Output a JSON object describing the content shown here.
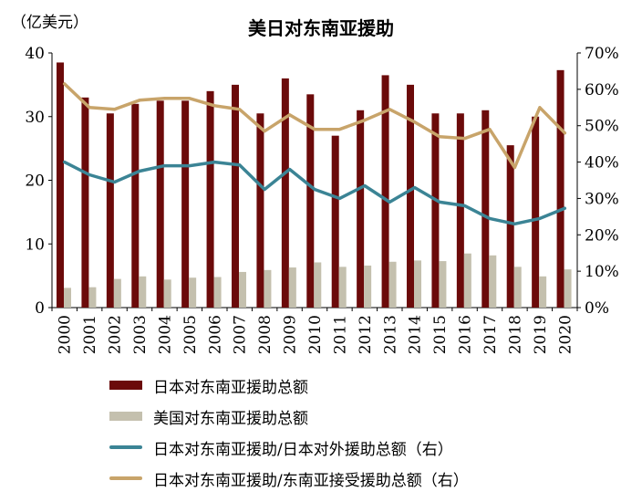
{
  "chart_data": {
    "type": "bar",
    "title": "美日对东南亚援助",
    "y_left_unit": "（亿美元）",
    "y_left_ticks": [
      "0",
      "10",
      "20",
      "30",
      "40"
    ],
    "y_left_range": [
      0,
      40
    ],
    "y_right_ticks": [
      "0%",
      "10%",
      "20%",
      "30%",
      "40%",
      "50%",
      "60%",
      "70%"
    ],
    "y_right_range": [
      0,
      70
    ],
    "categories": [
      "2000",
      "2001",
      "2002",
      "2003",
      "2004",
      "2005",
      "2006",
      "2007",
      "2008",
      "2009",
      "2010",
      "2011",
      "2012",
      "2013",
      "2014",
      "2015",
      "2016",
      "2017",
      "2018",
      "2019",
      "2020"
    ],
    "series": [
      {
        "name": "日本对东南亚援助总额",
        "type": "bar",
        "axis": "left",
        "color": "#6b0a0a",
        "values": [
          38.5,
          33,
          30.5,
          32,
          32.5,
          32.5,
          34,
          35,
          30.5,
          36,
          33.5,
          27,
          31,
          36.5,
          35,
          30.5,
          30.5,
          31,
          25.5,
          30,
          37.3
        ]
      },
      {
        "name": "美国对东南亚援助总额",
        "type": "bar",
        "axis": "left",
        "color": "#c4c0ae",
        "values": [
          3.1,
          3.2,
          4.5,
          4.9,
          4.4,
          4.7,
          4.8,
          5.6,
          5.9,
          6.3,
          7.1,
          6.4,
          6.6,
          7.2,
          7.4,
          7.3,
          8.5,
          8.2,
          6.4,
          4.9,
          6.0
        ]
      },
      {
        "name": "日本对东南亚援助/日本对外援助总额（右）",
        "type": "line",
        "axis": "right",
        "color": "#3b8495",
        "values": [
          40,
          36.5,
          34.5,
          37.5,
          39,
          39,
          40,
          39.2,
          32.5,
          38,
          32.5,
          30,
          33.5,
          29,
          33,
          29,
          28,
          24.5,
          23,
          24.5,
          27.3
        ]
      },
      {
        "name": "日本对东南亚援助/东南亚接受援助总额（右）",
        "type": "line",
        "axis": "right",
        "color": "#c8a46a",
        "values": [
          61.5,
          55,
          54.5,
          57,
          57.5,
          57.5,
          55.5,
          54.5,
          48.5,
          53,
          49,
          49,
          51.5,
          54.5,
          51,
          47,
          46.5,
          49,
          38.5,
          55,
          48
        ]
      }
    ]
  }
}
